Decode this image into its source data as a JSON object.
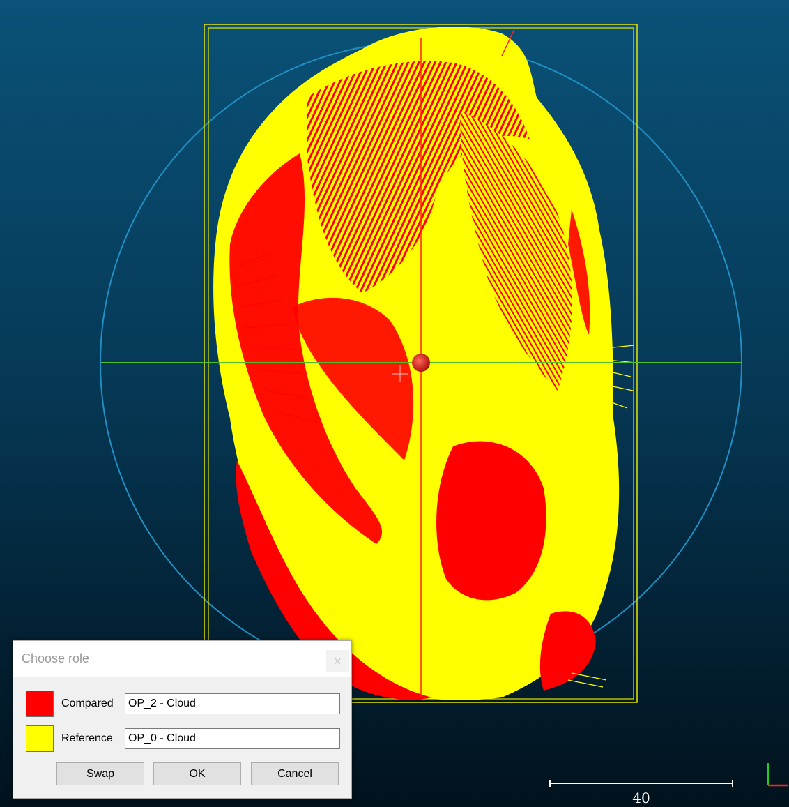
{
  "viewport": {
    "scale_label": "40",
    "colors": {
      "compared": "#ff0000",
      "reference": "#ffff00",
      "bounding_box": "#e6e600",
      "sphere": "#1f8fc4",
      "x_axis": "#4fbf2a",
      "y_axis": "#ff2020"
    }
  },
  "dialog": {
    "title": "Choose role",
    "close_icon": "close-icon",
    "compared": {
      "label": "Compared",
      "value": "OP_2 - Cloud",
      "color": "#ff0000"
    },
    "reference": {
      "label": "Reference",
      "value": "OP_0 - Cloud",
      "color": "#ffff00"
    },
    "buttons": {
      "swap": "Swap",
      "ok": "OK",
      "cancel": "Cancel"
    }
  }
}
